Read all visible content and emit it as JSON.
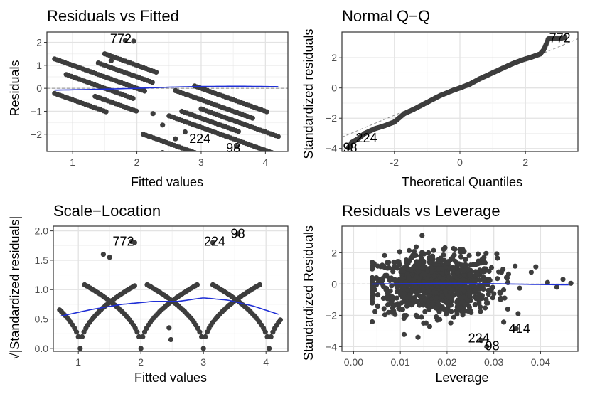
{
  "colors": {
    "point": "#3d3d3d",
    "smooth": "#1f2fd6",
    "reference": "#8c8c8c",
    "panel_border": "#333333",
    "grid_major": "#e3e3e3",
    "grid_minor": "#f2f2f2"
  },
  "chart_data": [
    {
      "type": "scatter",
      "title": "Residuals vs Fitted",
      "xlabel": "Fitted values",
      "ylabel": "Residuals",
      "xlim": [
        0.6,
        4.35
      ],
      "ylim": [
        -2.75,
        2.45
      ],
      "xticks": [
        1,
        2,
        3,
        4
      ],
      "yticks": [
        -2,
        -1,
        0,
        1,
        2
      ],
      "reference_line": {
        "type": "horizontal",
        "y": 0
      },
      "pattern": {
        "kind": "bands",
        "bands": [
          {
            "x0": 0.72,
            "x1": 2.15,
            "c": 4.9
          },
          {
            "x0": 0.9,
            "x1": 1.95,
            "c": 4.4
          },
          {
            "x0": 1.4,
            "x1": 2.25,
            "c": 5.4
          },
          {
            "x0": 1.5,
            "x1": 2.3,
            "c": 5.9
          },
          {
            "x0": 1.35,
            "x1": 2.0,
            "c": 3.9
          },
          {
            "x0": 0.72,
            "x1": 1.55,
            "c": 3.4
          },
          {
            "x0": 2.1,
            "x1": 3.4,
            "c": 3.0
          },
          {
            "x0": 2.5,
            "x1": 4.22,
            "c": 4.2
          },
          {
            "x0": 2.9,
            "x1": 4.05,
            "c": 5.9
          },
          {
            "x0": 2.4,
            "x1": 3.3,
            "c": 2.5
          },
          {
            "x0": 2.7,
            "x1": 3.6,
            "c": 4.6
          },
          {
            "x0": 2.6,
            "x1": 3.8,
            "c": 5.4
          },
          {
            "x0": 3.0,
            "x1": 4.2,
            "c": 5.0
          }
        ],
        "slope": -1,
        "step": 0.04
      },
      "extra_points": [
        {
          "x": 1.95,
          "y": 2.05
        },
        {
          "x": 1.82,
          "y": 2.08
        },
        {
          "x": 2.6,
          "y": -2.2
        },
        {
          "x": 3.55,
          "y": -2.55
        },
        {
          "x": 2.75,
          "y": -1.9
        },
        {
          "x": 2.25,
          "y": -1.1
        },
        {
          "x": 2.4,
          "y": -1.6
        },
        {
          "x": 1.6,
          "y": 1.2
        }
      ],
      "smooth": {
        "x": [
          0.72,
          1.3,
          2.0,
          2.5,
          3.0,
          3.6,
          4.2
        ],
        "y": [
          -0.08,
          -0.05,
          0.0,
          0.05,
          0.08,
          0.09,
          0.07
        ]
      },
      "point_labels": [
        {
          "text": "772",
          "x": 1.75,
          "y": 2.15
        },
        {
          "text": "224",
          "x": 2.98,
          "y": -2.2
        },
        {
          "text": "98",
          "x": 3.5,
          "y": -2.6
        }
      ]
    },
    {
      "type": "scatter",
      "title": "Normal Q−Q",
      "xlabel": "Theoretical Quantiles",
      "ylabel": "Standardized residuals",
      "xlim": [
        -3.6,
        3.6
      ],
      "ylim": [
        -4.2,
        3.7
      ],
      "xticks": [
        -2,
        0,
        2
      ],
      "yticks": [
        -4,
        -2,
        0,
        2
      ],
      "reference_line": {
        "type": "qq",
        "x": [
          -3.6,
          3.6
        ],
        "y": [
          -3.25,
          3.25
        ]
      },
      "pattern": {
        "kind": "qq",
        "x": [
          -3.4,
          -3.3,
          -3.1,
          -2.9,
          -2.6,
          -2.3,
          -2.0,
          -1.7,
          -1.4,
          -1.0,
          -0.6,
          -0.2,
          0.0,
          0.3,
          0.6,
          1.0,
          1.3,
          1.6,
          1.9,
          2.2,
          2.45,
          2.55,
          2.7,
          2.9,
          3.1,
          3.2
        ],
        "y": [
          -3.95,
          -3.6,
          -3.35,
          -3.0,
          -2.7,
          -2.5,
          -2.25,
          -1.7,
          -1.4,
          -0.95,
          -0.5,
          -0.15,
          0.0,
          0.25,
          0.6,
          1.0,
          1.3,
          1.6,
          1.85,
          2.05,
          2.25,
          2.5,
          3.25,
          3.3,
          3.3,
          3.35
        ],
        "step": 0.03
      },
      "point_labels": [
        {
          "text": "772",
          "x": 3.05,
          "y": 3.3
        },
        {
          "text": "224",
          "x": -2.85,
          "y": -3.3
        },
        {
          "text": "98",
          "x": -3.35,
          "y": -3.95
        }
      ]
    },
    {
      "type": "scatter",
      "title": "Scale−Location",
      "xlabel": "Fitted values",
      "ylabel": "√|Standardized residuals|",
      "xlim": [
        0.6,
        4.35
      ],
      "ylim": [
        -0.05,
        2.08
      ],
      "xticks": [
        1,
        2,
        3,
        4
      ],
      "yticks": [
        0.0,
        0.5,
        1.0,
        1.5,
        2.0
      ],
      "pattern": {
        "kind": "sqrt_abs",
        "centers": [
          1.03,
          2.0,
          3.0,
          4.05
        ],
        "slope": 0.62,
        "halfwidth": 0.9,
        "step": 0.03
      },
      "extra_points": [
        {
          "x": 1.85,
          "y": 1.82
        },
        {
          "x": 1.9,
          "y": 1.8
        },
        {
          "x": 3.55,
          "y": 1.95
        },
        {
          "x": 3.15,
          "y": 1.8
        },
        {
          "x": 2.45,
          "y": 0.35
        },
        {
          "x": 2.48,
          "y": 0.15
        },
        {
          "x": 1.5,
          "y": 1.55
        },
        {
          "x": 1.4,
          "y": 1.6
        }
      ],
      "smooth": {
        "x": [
          0.72,
          1.2,
          1.7,
          2.2,
          2.6,
          3.0,
          3.4,
          3.8,
          4.2
        ],
        "y": [
          0.55,
          0.66,
          0.75,
          0.8,
          0.8,
          0.86,
          0.82,
          0.72,
          0.58
        ]
      },
      "point_labels": [
        {
          "text": "772",
          "x": 1.72,
          "y": 1.82
        },
        {
          "text": "224",
          "x": 3.18,
          "y": 1.82
        },
        {
          "text": "98",
          "x": 3.55,
          "y": 1.95
        }
      ]
    },
    {
      "type": "scatter",
      "title": "Residuals vs Leverage",
      "xlabel": "Leverage",
      "ylabel": "Standardized Residuals",
      "xlim": [
        -0.0025,
        0.048
      ],
      "ylim": [
        -4.3,
        3.7
      ],
      "xticks": [
        0.0,
        0.01,
        0.02,
        0.03,
        0.04
      ],
      "xtick_labels": [
        "0.00",
        "0.01",
        "0.02",
        "0.03",
        "0.04"
      ],
      "yticks": [
        -4,
        -2,
        0,
        2
      ],
      "reference_line": {
        "type": "horizontal",
        "y": 0
      },
      "pattern": {
        "kind": "cloud",
        "n": 1000,
        "xmean": 0.0175,
        "xsd": 0.0065,
        "xmin": 0.004,
        "xmax": 0.046,
        "ysd": 0.95,
        "ymax": 3.4
      },
      "extra_points": [
        {
          "x": 0.0348,
          "y": -2.85
        },
        {
          "x": 0.0273,
          "y": -3.6
        },
        {
          "x": 0.0285,
          "y": -4.0
        },
        {
          "x": 0.0415,
          "y": 0.1
        },
        {
          "x": 0.0448,
          "y": 0.3
        },
        {
          "x": 0.0435,
          "y": -0.2
        },
        {
          "x": 0.0465,
          "y": 0.05
        },
        {
          "x": 0.039,
          "y": 1.1
        }
      ],
      "smooth": {
        "x": [
          0.004,
          0.01,
          0.02,
          0.03,
          0.04,
          0.046
        ],
        "y": [
          0.0,
          0.02,
          0.04,
          0.02,
          -0.03,
          -0.05
        ]
      },
      "point_labels": [
        {
          "text": "224",
          "x": 0.0268,
          "y": -3.45
        },
        {
          "text": "414",
          "x": 0.0355,
          "y": -2.85
        },
        {
          "text": "98",
          "x": 0.0297,
          "y": -3.95
        }
      ]
    }
  ]
}
